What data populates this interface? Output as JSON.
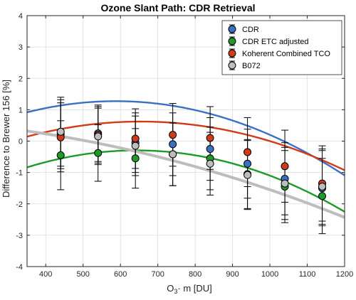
{
  "chart_data": {
    "type": "scatter",
    "title": "Ozone Slant Path: CDR Retrieval",
    "xlabel_main": "O",
    "xlabel_sub": "3",
    "xlabel_rest": "· m [DU]",
    "ylabel": "Difference to Brewer 156 [%]",
    "xlim": [
      350,
      1200
    ],
    "ylim": [
      -4,
      4
    ],
    "xticks": [
      400,
      500,
      600,
      700,
      800,
      900,
      1000,
      1100,
      1200
    ],
    "yticks": [
      -4,
      -3,
      -2,
      -1,
      0,
      1,
      2,
      3,
      4
    ],
    "grid": true,
    "legend_position": "top-right",
    "series": [
      {
        "name": "CDR",
        "color": "#3a6fc6",
        "points": [
          {
            "x": 440,
            "y": 0.22,
            "err": 1.1
          },
          {
            "x": 540,
            "y": 0.25,
            "err": 0.9
          },
          {
            "x": 640,
            "y": -0.05,
            "err": 0.95
          },
          {
            "x": 740,
            "y": -0.1,
            "err": 1.0
          },
          {
            "x": 840,
            "y": -0.25,
            "err": 1.0
          },
          {
            "x": 940,
            "y": -0.72,
            "err": 1.1
          },
          {
            "x": 1040,
            "y": -1.2,
            "err": 1.15
          },
          {
            "x": 1140,
            "y": -1.5,
            "err": 1.2
          }
        ],
        "fit": [
          -0.9,
          0.0074,
          -6.3e-06
        ]
      },
      {
        "name": "CDR ETC adjusted",
        "color": "#1e9a28",
        "points": [
          {
            "x": 440,
            "y": -0.45,
            "err": 1.1
          },
          {
            "x": 540,
            "y": -0.38,
            "err": 0.9
          },
          {
            "x": 640,
            "y": -0.55,
            "err": 0.95
          },
          {
            "x": 740,
            "y": -0.42,
            "err": 1.0
          },
          {
            "x": 840,
            "y": -0.55,
            "err": 1.0
          },
          {
            "x": 940,
            "y": -1.05,
            "err": 1.1
          },
          {
            "x": 1040,
            "y": -1.45,
            "err": 1.15
          },
          {
            "x": 1140,
            "y": -1.75,
            "err": 1.2
          }
        ],
        "fit": [
          -2.9,
          0.0081,
          -6.3e-06
        ]
      },
      {
        "name": "Koherent Combined TCO",
        "color": "#d03b1a",
        "points": [
          {
            "x": 440,
            "y": 0.12,
            "err": 1.1
          },
          {
            "x": 540,
            "y": 0.2,
            "err": 0.9
          },
          {
            "x": 640,
            "y": 0.08,
            "err": 0.95
          },
          {
            "x": 740,
            "y": 0.2,
            "err": 1.0
          },
          {
            "x": 840,
            "y": 0.1,
            "err": 1.0
          },
          {
            "x": 940,
            "y": -0.35,
            "err": 1.1
          },
          {
            "x": 1040,
            "y": -0.8,
            "err": 1.15
          },
          {
            "x": 1140,
            "y": -1.35,
            "err": 1.2
          }
        ],
        "fit": [
          -1.6,
          0.0068,
          -5.2e-06
        ]
      },
      {
        "name": "B072",
        "color": "#bdbdbd",
        "points": [
          {
            "x": 440,
            "y": 0.3,
            "err": 1.1
          },
          {
            "x": 540,
            "y": 0.15,
            "err": 0.9
          },
          {
            "x": 640,
            "y": -0.15,
            "err": 0.95
          },
          {
            "x": 740,
            "y": -0.42,
            "err": 1.0
          },
          {
            "x": 840,
            "y": -0.72,
            "err": 1.0
          },
          {
            "x": 940,
            "y": -1.08,
            "err": 1.1
          },
          {
            "x": 1040,
            "y": -1.35,
            "err": 1.15
          },
          {
            "x": 1140,
            "y": -1.45,
            "err": 1.2
          }
        ],
        "fit": [
          0.7,
          -0.00045,
          -1.8e-06
        ]
      }
    ]
  }
}
